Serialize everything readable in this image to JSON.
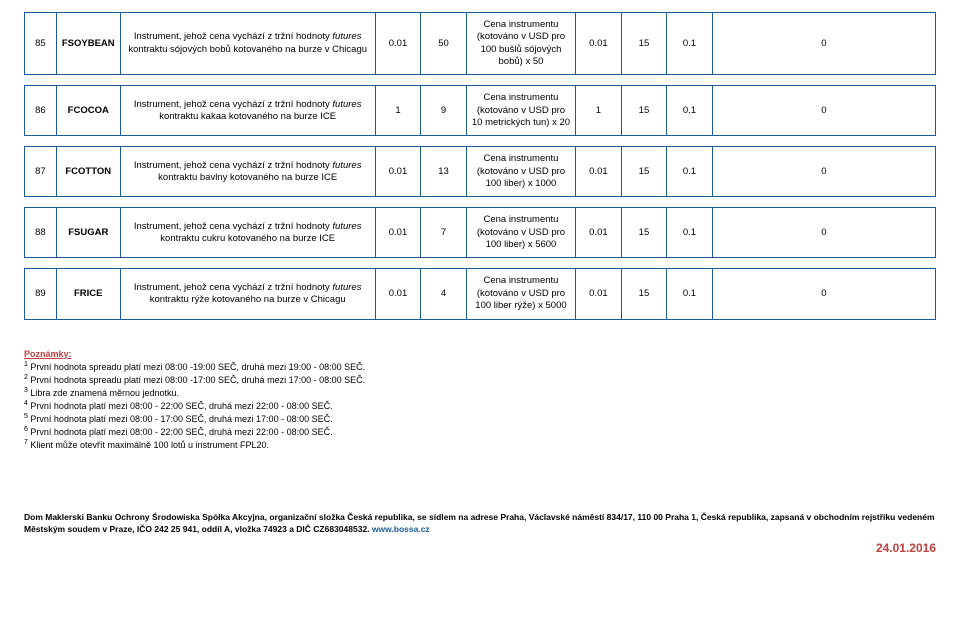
{
  "rows": [
    {
      "id": "85",
      "symbol": "FSOYBEAN",
      "desc_pre": "Instrument, jehož cena vychází z tržní hodnoty ",
      "desc_italic": "futures",
      "desc_post": " kontraktu sójových bobů kotovaného na burze v Chicagu",
      "n1": "0.01",
      "n2": "50",
      "price": "Cena instrumentu (kotováno v USD pro 100 bušlů sójových bobů) x 50",
      "n3": "0.01",
      "n4": "15",
      "n5": "0.1",
      "n6": "0"
    },
    {
      "id": "86",
      "symbol": "FCOCOA",
      "desc_pre": "Instrument, jehož cena vychází z tržní hodnoty ",
      "desc_italic": "futures",
      "desc_post": " kontraktu kakaa kotovaného na burze ICE",
      "n1": "1",
      "n2": "9",
      "price": "Cena instrumentu (kotováno v USD pro 10 metrických tun) x  20",
      "n3": "1",
      "n4": "15",
      "n5": "0.1",
      "n6": "0"
    },
    {
      "id": "87",
      "symbol": "FCOTTON",
      "desc_pre": "Instrument, jehož cena vychází z tržní hodnoty ",
      "desc_italic": "futures",
      "desc_post": " kontraktu bavlny kotovaného na burze ICE",
      "n1": "0.01",
      "n2": "13",
      "price": "Cena instrumentu (kotováno v USD pro 100 liber) x 1000",
      "n3": "0.01",
      "n4": "15",
      "n5": "0.1",
      "n6": "0"
    },
    {
      "id": "88",
      "symbol": "FSUGAR",
      "desc_pre": "Instrument, jehož cena vychází z tržní hodnoty ",
      "desc_italic": "futures",
      "desc_post": " kontraktu cukru kotovaného na burze ICE",
      "n1": "0.01",
      "n2": "7",
      "price": "Cena instrumentu (kotováno v USD pro 100 liber) x 5600",
      "n3": "0.01",
      "n4": "15",
      "n5": "0.1",
      "n6": "0"
    },
    {
      "id": "89",
      "symbol": "FRICE",
      "desc_pre": "Instrument, jehož cena vychází z tržní hodnoty ",
      "desc_italic": "futures",
      "desc_post": " kontraktu rýže kotovaného na burze v Chicagu",
      "n1": "0.01",
      "n2": "4",
      "price": "Cena instrumentu (kotováno v USD pro 100 liber rýže) x  5000",
      "n3": "0.01",
      "n4": "15",
      "n5": "0.1",
      "n6": "0"
    }
  ],
  "notes": {
    "title": "Poznámky:",
    "n1": "První hodnota spreadu platí mezi 08:00 -19:00 SEČ, druhá mezi 19:00 - 08:00 SEČ.",
    "n2": "První hodnota spreadu platí mezi 08:00 -17:00 SEČ, druhá mezi 17:00 - 08:00 SEČ.",
    "n3": "Libra zde znamená měrnou jednotku.",
    "n4": "První hodnota platí mezi 08:00 - 22:00 SEČ, druhá mezi 22:00 - 08:00 SEČ.",
    "n5": "První hodnota platí mezi 08:00 - 17:00 SEČ, druhá mezi 17:00 - 08:00 SEČ.",
    "n6": "První hodnota platí mezi 08:00 - 22:00 SEČ, druhá mezi 22:00 - 08:00 SEČ.",
    "n7": "Klient může otevřít maximálně 100 lotů u instrument FPL20."
  },
  "footer": {
    "text": "Dom Maklerski Banku Ochrony Środowiska Spółka Akcyjna, organizační složka Česká republika, se sídlem na adrese Praha, Václavské náměstí 834/17, 110 00 Praha 1, Česká republika, zapsaná v obchodním rejstříku vedeném Městským soudem v Praze, IČO 242 25 941, oddíl A, vložka 74923 a DIČ CZ683048532. ",
    "link": "www.bossa.cz"
  },
  "date": "24.01.2016",
  "colors": {
    "border": "#1a5a96",
    "accent_red": "#c04040",
    "link": "#1a5a96"
  }
}
